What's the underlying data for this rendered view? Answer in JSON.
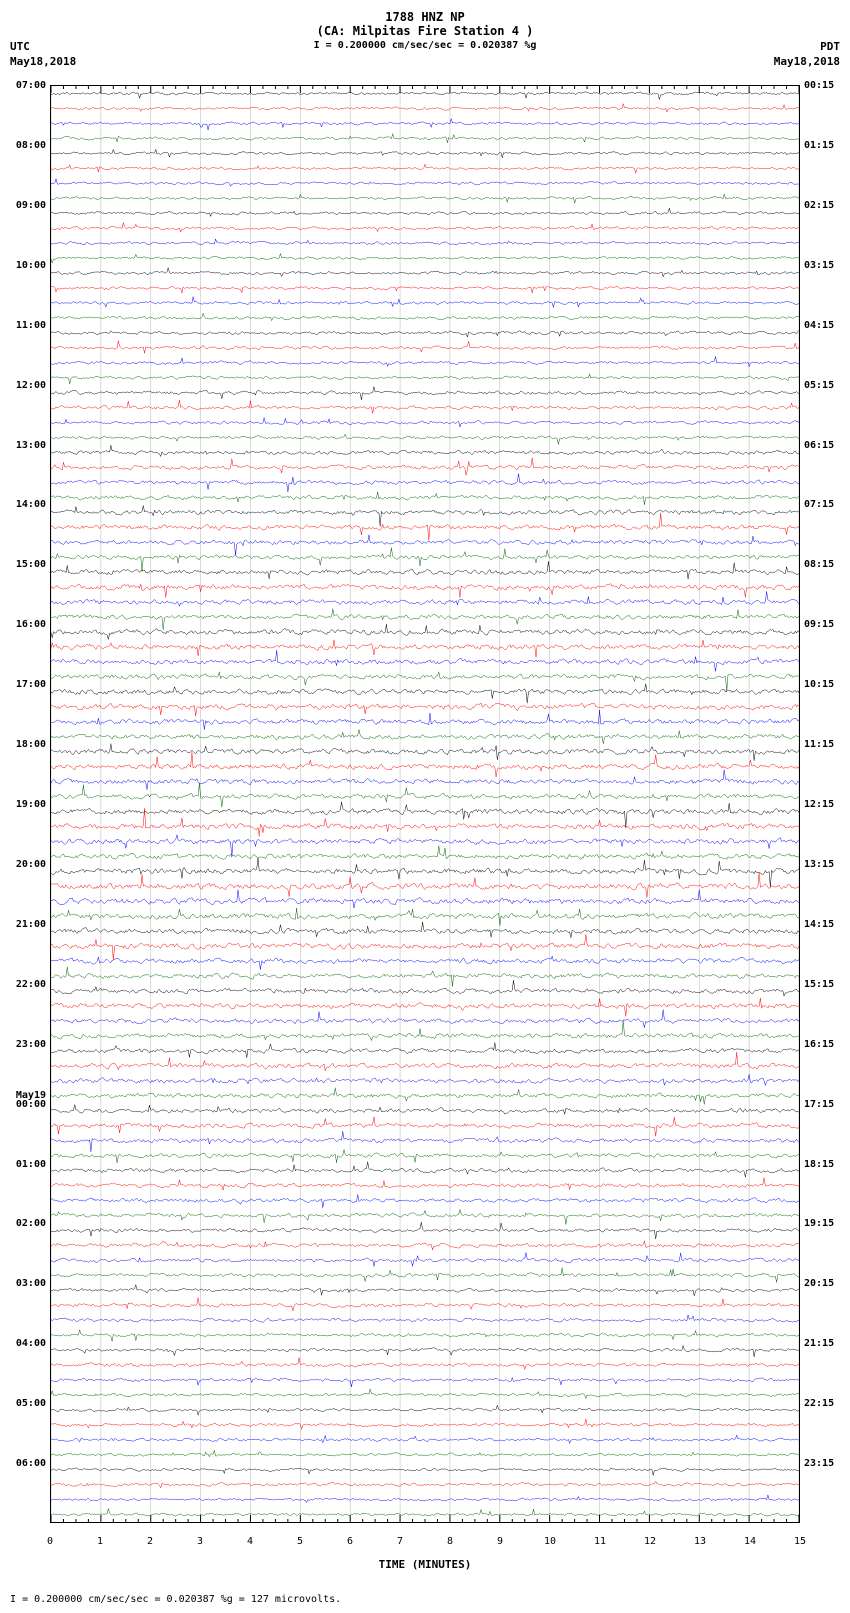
{
  "header": {
    "line1": "1788 HNZ NP",
    "line2": "(CA: Milpitas Fire Station 4 )",
    "scale_text": "= 0.200000 cm/sec/sec = 0.020387 %g",
    "scale_bar": "I"
  },
  "timezones": {
    "left": "UTC",
    "right": "PDT"
  },
  "dates": {
    "left": "May18,2018",
    "right": "May18,2018"
  },
  "footer": "= 0.200000 cm/sec/sec = 0.020387 %g =   127 microvolts.",
  "footer_prefix": "I",
  "plot": {
    "background_color": "#ffffff",
    "grid_color": "#c0c0c0",
    "border_color": "#000000",
    "trace_colors": [
      "#000000",
      "#ff0000",
      "#0000ff",
      "#006400"
    ],
    "n_traces": 96,
    "trace_line_width": 0.5,
    "x_range": [
      0,
      15
    ],
    "x_ticks": [
      0,
      1,
      2,
      3,
      4,
      5,
      6,
      7,
      8,
      9,
      10,
      11,
      12,
      13,
      14,
      15
    ],
    "x_title": "TIME (MINUTES)",
    "amplitude_base": 2.2,
    "amplitude_variation": [
      1.0,
      1.0,
      1.0,
      1.0,
      1.0,
      1.0,
      1.0,
      1.0,
      1.1,
      1.1,
      1.0,
      1.0,
      1.1,
      1.1,
      1.1,
      1.1,
      1.2,
      1.2,
      1.1,
      1.1,
      1.3,
      1.3,
      1.2,
      1.2,
      1.5,
      1.6,
      1.5,
      1.5,
      1.7,
      1.8,
      1.7,
      1.6,
      1.8,
      1.9,
      1.8,
      1.7,
      1.9,
      2.0,
      1.9,
      1.8,
      1.9,
      2.0,
      1.9,
      1.8,
      1.9,
      2.0,
      1.9,
      1.8,
      2.0,
      2.1,
      2.0,
      1.9,
      2.1,
      2.2,
      2.1,
      2.0,
      1.9,
      2.0,
      1.9,
      1.8,
      1.8,
      1.9,
      1.8,
      1.7,
      1.7,
      1.8,
      1.7,
      1.6,
      1.6,
      1.7,
      1.6,
      1.5,
      1.5,
      1.6,
      1.5,
      1.4,
      1.4,
      1.5,
      1.4,
      1.3,
      1.3,
      1.4,
      1.3,
      1.2,
      1.2,
      1.3,
      1.2,
      1.1,
      1.1,
      1.2,
      1.1,
      1.0,
      1.0,
      1.1,
      1.0,
      1.0
    ]
  },
  "left_time_labels": [
    {
      "text": "07:00",
      "row": 0
    },
    {
      "text": "08:00",
      "row": 4
    },
    {
      "text": "09:00",
      "row": 8
    },
    {
      "text": "10:00",
      "row": 12
    },
    {
      "text": "11:00",
      "row": 16
    },
    {
      "text": "12:00",
      "row": 20
    },
    {
      "text": "13:00",
      "row": 24
    },
    {
      "text": "14:00",
      "row": 28
    },
    {
      "text": "15:00",
      "row": 32
    },
    {
      "text": "16:00",
      "row": 36
    },
    {
      "text": "17:00",
      "row": 40
    },
    {
      "text": "18:00",
      "row": 44
    },
    {
      "text": "19:00",
      "row": 48
    },
    {
      "text": "20:00",
      "row": 52
    },
    {
      "text": "21:00",
      "row": 56
    },
    {
      "text": "22:00",
      "row": 60
    },
    {
      "text": "23:00",
      "row": 64
    },
    {
      "text": "May19",
      "row": 67.4
    },
    {
      "text": "00:00",
      "row": 68
    },
    {
      "text": "01:00",
      "row": 72
    },
    {
      "text": "02:00",
      "row": 76
    },
    {
      "text": "03:00",
      "row": 80
    },
    {
      "text": "04:00",
      "row": 84
    },
    {
      "text": "05:00",
      "row": 88
    },
    {
      "text": "06:00",
      "row": 92
    }
  ],
  "right_time_labels": [
    {
      "text": "00:15",
      "row": 0
    },
    {
      "text": "01:15",
      "row": 4
    },
    {
      "text": "02:15",
      "row": 8
    },
    {
      "text": "03:15",
      "row": 12
    },
    {
      "text": "04:15",
      "row": 16
    },
    {
      "text": "05:15",
      "row": 20
    },
    {
      "text": "06:15",
      "row": 24
    },
    {
      "text": "07:15",
      "row": 28
    },
    {
      "text": "08:15",
      "row": 32
    },
    {
      "text": "09:15",
      "row": 36
    },
    {
      "text": "10:15",
      "row": 40
    },
    {
      "text": "11:15",
      "row": 44
    },
    {
      "text": "12:15",
      "row": 48
    },
    {
      "text": "13:15",
      "row": 52
    },
    {
      "text": "14:15",
      "row": 56
    },
    {
      "text": "15:15",
      "row": 60
    },
    {
      "text": "16:15",
      "row": 64
    },
    {
      "text": "17:15",
      "row": 68
    },
    {
      "text": "18:15",
      "row": 72
    },
    {
      "text": "19:15",
      "row": 76
    },
    {
      "text": "20:15",
      "row": 80
    },
    {
      "text": "21:15",
      "row": 84
    },
    {
      "text": "22:15",
      "row": 88
    },
    {
      "text": "23:15",
      "row": 92
    }
  ]
}
